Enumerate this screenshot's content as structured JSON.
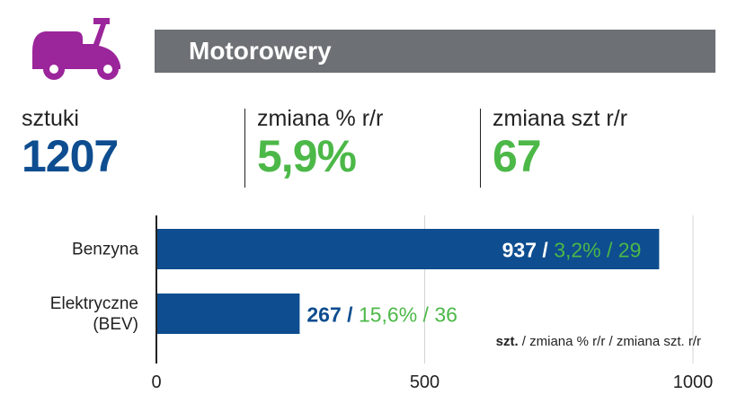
{
  "header": {
    "title": "Motorowery",
    "icon": "scooter-icon"
  },
  "stats": [
    {
      "label": "sztuki",
      "value": "1207",
      "color": "#0e4d8f"
    },
    {
      "label": "zmiana % r/r",
      "value": "5,9%",
      "color": "#4cb848"
    },
    {
      "label": "zmiana szt r/r",
      "value": "67",
      "color": "#4cb848"
    }
  ],
  "colors": {
    "bar": "#0e4d8f",
    "green": "#4cb848",
    "header_bg": "#6d7074",
    "icon": "#9b259b"
  },
  "chart_data": {
    "type": "bar",
    "orientation": "horizontal",
    "categories": [
      "Benzyna",
      "Elektryczne (BEV)"
    ],
    "category_lines": [
      [
        "Benzyna"
      ],
      [
        "Elektryczne",
        "(BEV)"
      ]
    ],
    "values": [
      937,
      267
    ],
    "pct_change": [
      "3,2%",
      "15,6%"
    ],
    "unit_change": [
      "29",
      "36"
    ],
    "xlim": [
      0,
      1000
    ],
    "xticks": [
      "0",
      "500",
      "1000"
    ],
    "xtick_values": [
      0,
      500,
      1000
    ],
    "grid": true,
    "legend_note": {
      "a": "szt.",
      "b": " / zmiana % r/r / zmiana szt. r/r"
    }
  }
}
